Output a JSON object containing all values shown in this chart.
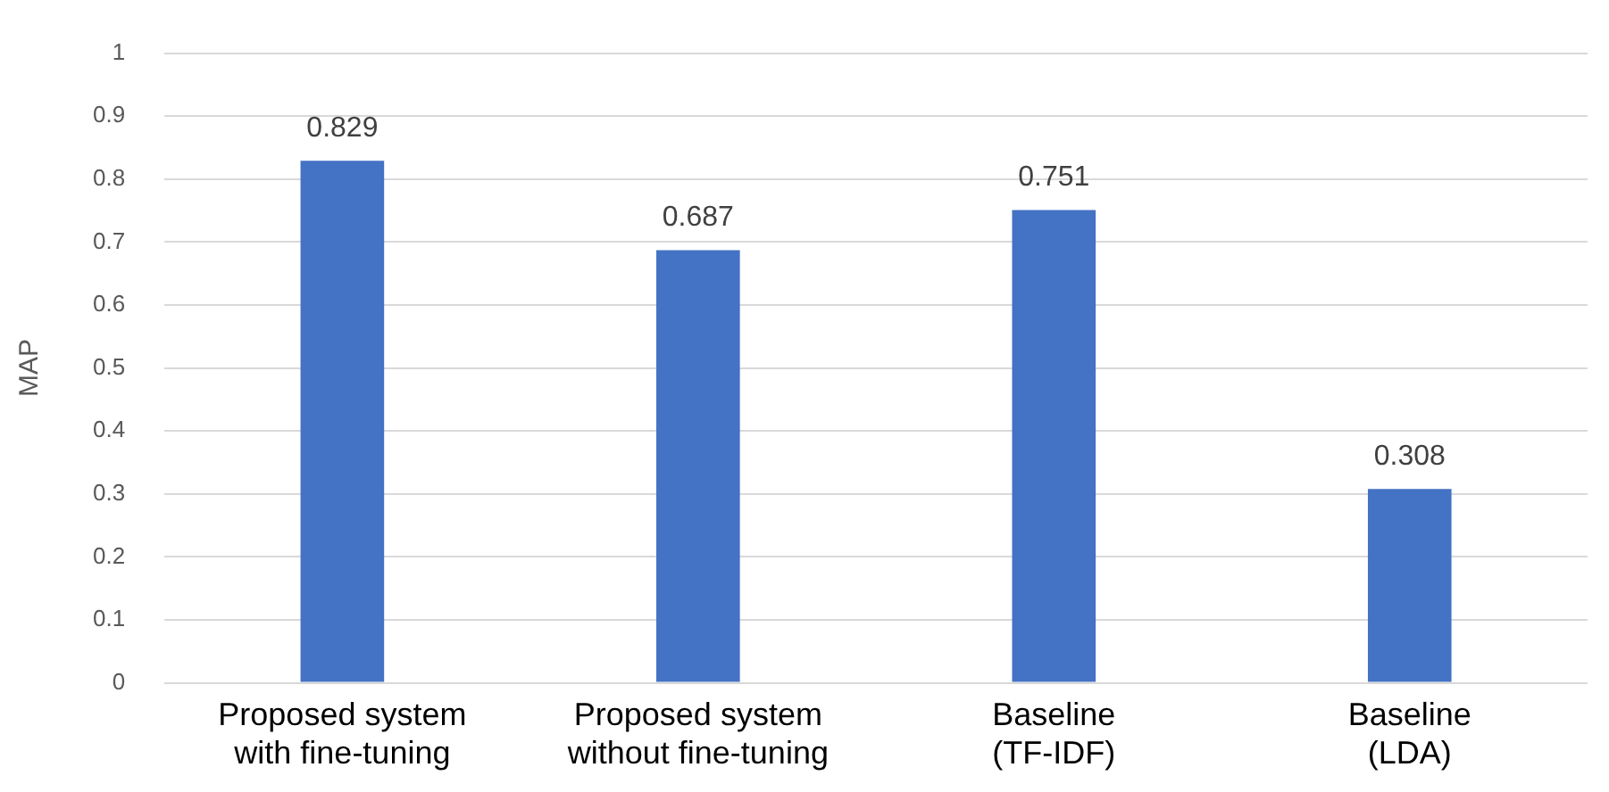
{
  "chart_data": {
    "type": "bar",
    "ylabel": "MAP",
    "categories": [
      "Proposed system with fine-tuning",
      "Proposed system without fine-tuning",
      "Baseline (TF-IDF)",
      "Baseline (LDA)"
    ],
    "values": [
      0.829,
      0.687,
      0.751,
      0.308
    ],
    "color": "#4472c4",
    "ylim": [
      0,
      1
    ],
    "yticks": [
      0,
      0.1,
      0.2,
      0.3,
      0.4,
      0.5,
      0.6,
      0.7,
      0.8,
      0.9,
      1
    ],
    "grid": "y",
    "data_labels": true
  }
}
